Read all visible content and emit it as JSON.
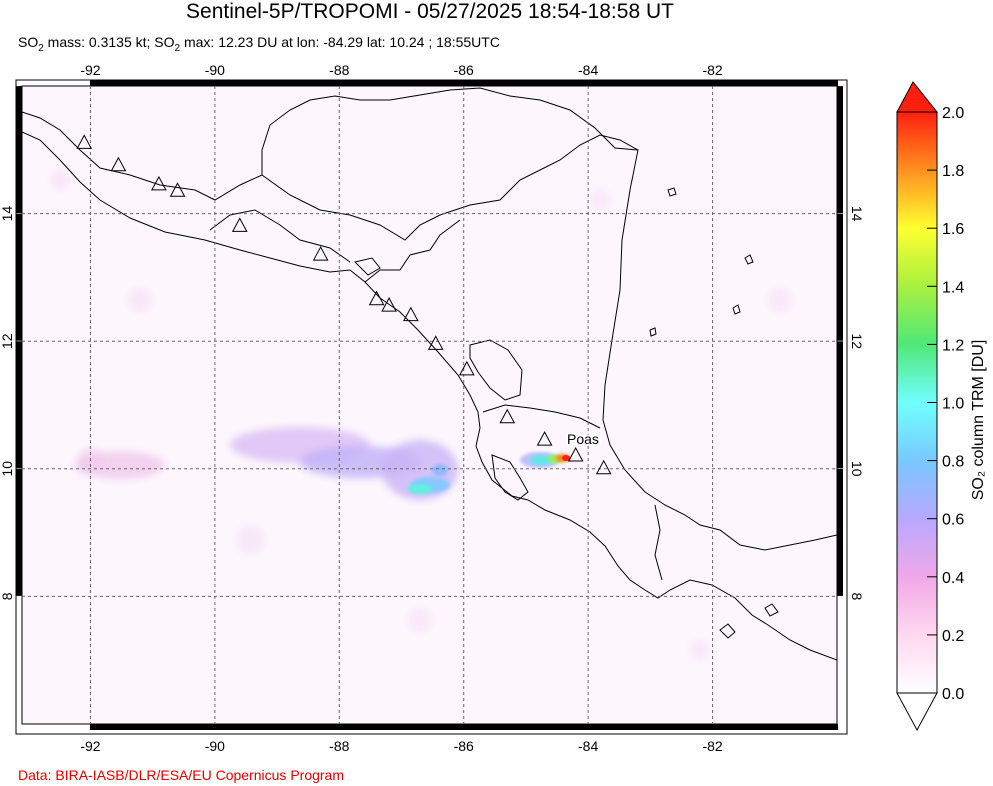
{
  "header": {
    "title": "Sentinel-5P/TROPOMI - 05/27/2025 18:54-18:58 UT",
    "subtitle_parts": {
      "a": "SO",
      "a_sub": "2",
      "b": " mass: 0.3135 kt; SO",
      "b_sub": "2",
      "c": " max: 12.23 DU at lon: -84.29 lat: 10.24 ; 18:55UTC"
    }
  },
  "map": {
    "lon_range": [
      -93.1,
      -80.0
    ],
    "lat_range": [
      6.0,
      16.0
    ],
    "lon_ticks": [
      -92,
      -90,
      -88,
      -86,
      -84,
      -82
    ],
    "lon_tick_labels": [
      "-92",
      "-90",
      "-88",
      "-86",
      "-84",
      "-82"
    ],
    "lat_ticks": [
      8,
      10,
      12,
      14
    ],
    "lat_tick_labels": [
      "8",
      "10",
      "12",
      "14"
    ],
    "grid": true,
    "volcano_label": "Poas",
    "volcanoes": [
      {
        "lon": -92.1,
        "lat": 15.1
      },
      {
        "lon": -91.55,
        "lat": 14.75
      },
      {
        "lon": -90.9,
        "lat": 14.45
      },
      {
        "lon": -90.6,
        "lat": 14.35
      },
      {
        "lon": -89.6,
        "lat": 13.8
      },
      {
        "lon": -88.3,
        "lat": 13.35
      },
      {
        "lon": -87.4,
        "lat": 12.65
      },
      {
        "lon": -87.2,
        "lat": 12.55
      },
      {
        "lon": -86.85,
        "lat": 12.4
      },
      {
        "lon": -86.45,
        "lat": 11.95
      },
      {
        "lon": -85.95,
        "lat": 11.55
      },
      {
        "lon": -85.3,
        "lat": 10.8
      },
      {
        "lon": -84.7,
        "lat": 10.45
      },
      {
        "lon": -84.2,
        "lat": 10.2
      },
      {
        "lon": -83.75,
        "lat": 10.0
      }
    ]
  },
  "colorbar": {
    "label": "SO₂ column TRM [DU]",
    "min": 0.0,
    "max": 2.0,
    "tick_labels": [
      "0.0",
      "0.2",
      "0.4",
      "0.6",
      "0.8",
      "1.0",
      "1.2",
      "1.4",
      "1.6",
      "1.8",
      "2.0"
    ],
    "colors": [
      "#ffffff",
      "#ffd8f0",
      "#f0a8e8",
      "#b8a8ff",
      "#78c8ff",
      "#70ffff",
      "#50e878",
      "#a8f040",
      "#ffff30",
      "#ff9020",
      "#ff2010"
    ]
  },
  "footer": {
    "credit": "Data: BIRA-IASB/DLR/ESA/EU Copernicus Program"
  }
}
